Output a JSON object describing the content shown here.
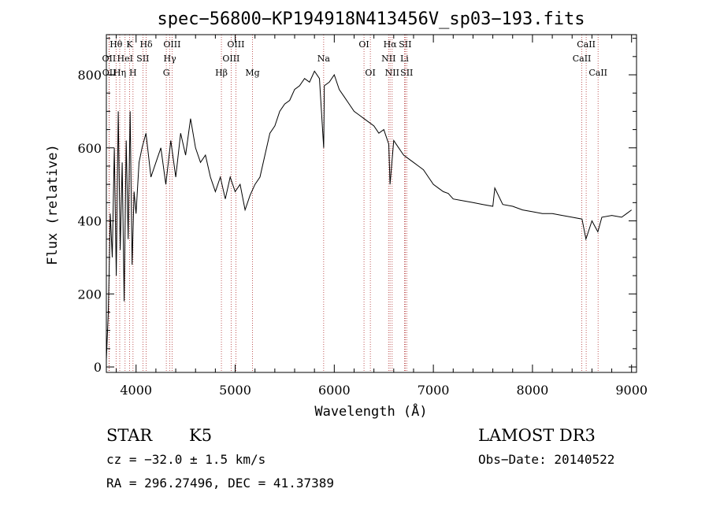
{
  "chart_data": {
    "type": "line",
    "title": "spec−56800−KP194918N413456V_sp03−193.fits",
    "xlabel": "Wavelength (Å)",
    "ylabel": "Flux (relative)",
    "xlim": [
      3700,
      9050
    ],
    "ylim": [
      -15,
      910
    ],
    "x_ticks": [
      4000,
      5000,
      6000,
      7000,
      8000,
      9000
    ],
    "y_ticks": [
      0,
      200,
      400,
      600,
      800
    ],
    "grid": false,
    "line_color": "#000000",
    "marker_line_color": "#b03030",
    "spectrum": {
      "name": "",
      "x": [
        3700,
        3720,
        3740,
        3760,
        3780,
        3800,
        3820,
        3840,
        3860,
        3880,
        3900,
        3920,
        3940,
        3960,
        3980,
        4000,
        4030,
        4060,
        4100,
        4150,
        4200,
        4250,
        4300,
        4350,
        4400,
        4450,
        4500,
        4550,
        4600,
        4650,
        4700,
        4750,
        4800,
        4850,
        4900,
        4950,
        5000,
        5050,
        5100,
        5150,
        5200,
        5250,
        5300,
        5350,
        5400,
        5450,
        5500,
        5550,
        5600,
        5650,
        5700,
        5750,
        5800,
        5850,
        5893,
        5900,
        5950,
        6000,
        6050,
        6100,
        6150,
        6200,
        6250,
        6300,
        6350,
        6400,
        6450,
        6500,
        6550,
        6563,
        6600,
        6650,
        6700,
        6750,
        6800,
        6850,
        6900,
        6950,
        7000,
        7050,
        7100,
        7150,
        7200,
        7300,
        7400,
        7500,
        7600,
        7620,
        7700,
        7800,
        7900,
        8000,
        8100,
        8200,
        8300,
        8400,
        8500,
        8540,
        8600,
        8660,
        8700,
        8800,
        8900,
        8950,
        9000
      ],
      "y": [
        20,
        150,
        420,
        300,
        600,
        250,
        700,
        320,
        560,
        180,
        620,
        350,
        700,
        280,
        480,
        420,
        560,
        600,
        640,
        520,
        560,
        600,
        500,
        620,
        520,
        640,
        580,
        680,
        600,
        560,
        580,
        520,
        480,
        520,
        460,
        520,
        480,
        500,
        430,
        470,
        500,
        520,
        580,
        640,
        660,
        700,
        720,
        730,
        760,
        770,
        790,
        780,
        810,
        790,
        600,
        770,
        780,
        800,
        760,
        740,
        720,
        700,
        690,
        680,
        670,
        660,
        640,
        650,
        610,
        500,
        620,
        600,
        580,
        570,
        560,
        550,
        540,
        520,
        500,
        490,
        480,
        475,
        460,
        455,
        450,
        445,
        440,
        490,
        445,
        440,
        430,
        425,
        420,
        420,
        415,
        410,
        405,
        350,
        400,
        370,
        410,
        415,
        410,
        420,
        430
      ]
    },
    "lines": [
      {
        "label": "Hθ",
        "x": 3798,
        "row": 1
      },
      {
        "label": "OII",
        "x": 3727,
        "row": 2
      },
      {
        "label": "OII",
        "x": 3729,
        "row": 3
      },
      {
        "label": "K",
        "x": 3934,
        "row": 1
      },
      {
        "label": "HeI",
        "x": 3889,
        "row": 2
      },
      {
        "label": "Hη",
        "x": 3835,
        "row": 3
      },
      {
        "label": "H",
        "x": 3969,
        "row": 3
      },
      {
        "label": "Hδ",
        "x": 4102,
        "row": 1
      },
      {
        "label": "SII",
        "x": 4069,
        "row": 2
      },
      {
        "label": "OIII",
        "x": 4363,
        "row": 1
      },
      {
        "label": "Hγ",
        "x": 4341,
        "row": 2
      },
      {
        "label": "G",
        "x": 4305,
        "row": 3
      },
      {
        "label": "OIII",
        "x": 5007,
        "row": 1
      },
      {
        "label": "OIII",
        "x": 4959,
        "row": 2
      },
      {
        "label": "Hβ",
        "x": 4861,
        "row": 3
      },
      {
        "label": "Mg",
        "x": 5175,
        "row": 3
      },
      {
        "label": "Na",
        "x": 5893,
        "row": 2
      },
      {
        "label": "OI",
        "x": 6300,
        "row": 1
      },
      {
        "label": "OI",
        "x": 6364,
        "row": 3
      },
      {
        "label": "Hα",
        "x": 6563,
        "row": 1
      },
      {
        "label": "NII",
        "x": 6548,
        "row": 2
      },
      {
        "label": "NII",
        "x": 6584,
        "row": 3
      },
      {
        "label": "SII",
        "x": 6716,
        "row": 1
      },
      {
        "label": "Li",
        "x": 6708,
        "row": 2
      },
      {
        "label": "SII",
        "x": 6731,
        "row": 3
      },
      {
        "label": "CaII",
        "x": 8542,
        "row": 1
      },
      {
        "label": "CaII",
        "x": 8498,
        "row": 2
      },
      {
        "label": "CaII",
        "x": 8662,
        "row": 3
      }
    ]
  },
  "info": {
    "class_label": "STAR",
    "subclass": "K5",
    "survey": "LAMOST DR3",
    "cz": "cz = −32.0 ± 1.5 km/s",
    "obs_date": "Obs−Date: 20140522",
    "coords": "RA = 296.27496, DEC =  41.37389"
  }
}
